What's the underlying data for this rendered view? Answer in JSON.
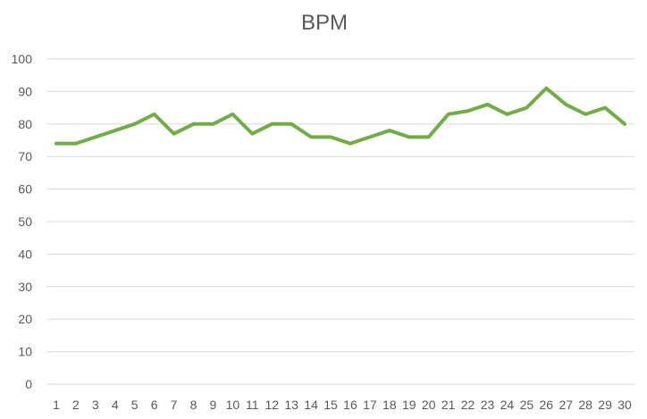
{
  "chart_data": {
    "type": "line",
    "title": "BPM",
    "xlabel": "",
    "ylabel": "",
    "categories": [
      "1",
      "2",
      "3",
      "4",
      "5",
      "6",
      "7",
      "8",
      "9",
      "10",
      "11",
      "12",
      "13",
      "14",
      "15",
      "16",
      "17",
      "18",
      "19",
      "20",
      "21",
      "22",
      "23",
      "24",
      "25",
      "26",
      "27",
      "28",
      "29",
      "30"
    ],
    "series": [
      {
        "values": [
          74,
          74,
          76,
          78,
          80,
          83,
          77,
          80,
          80,
          83,
          77,
          80,
          80,
          76,
          76,
          74,
          76,
          78,
          76,
          76,
          83,
          84,
          86,
          83,
          85,
          91,
          86,
          83,
          85,
          80
        ],
        "color": "#70ad47"
      }
    ],
    "ylim": [
      0,
      100
    ],
    "yticks": [
      0,
      10,
      20,
      30,
      40,
      50,
      60,
      70,
      80,
      90,
      100
    ],
    "grid": true,
    "legend": "none"
  }
}
